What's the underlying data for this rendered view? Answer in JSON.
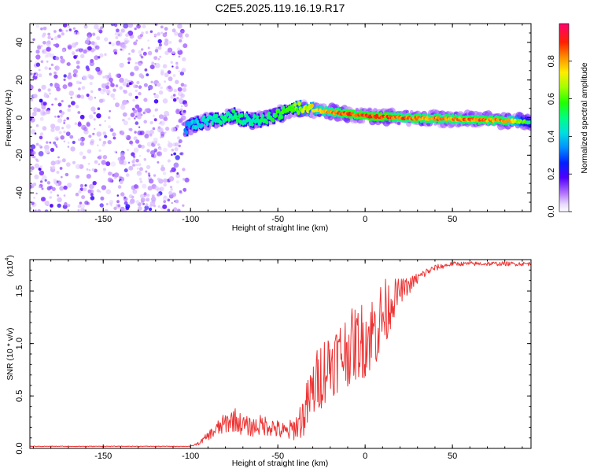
{
  "title": "C2E5.2025.119.16.19.R17",
  "chart_data": [
    {
      "type": "heatmap",
      "xlabel": "Height of straight line (km)",
      "ylabel": "Frequency (Hz)",
      "xlim": [
        -192,
        95
      ],
      "ylim": [
        -50,
        50
      ],
      "xticks": [
        -150,
        -100,
        -50,
        0,
        50
      ],
      "yticks": [
        -40,
        -20,
        0,
        20,
        40
      ],
      "colorbar": {
        "label": "Normalized spectral amplitude",
        "range": [
          0.0,
          1.0
        ],
        "ticks": [
          "0.0",
          "0.2",
          "0.4",
          "0.6",
          "0.8"
        ]
      },
      "noise_region_km": [
        -192,
        -102
      ],
      "signal_track": {
        "x": [
          -103,
          -95,
          -85,
          -75,
          -65,
          -55,
          -45,
          -38,
          -30,
          -20,
          -10,
          0,
          10,
          20,
          40,
          60,
          80,
          95
        ],
        "freq": [
          -6,
          -3,
          -1,
          1,
          -2,
          0,
          3,
          5,
          4,
          3,
          2,
          1,
          0.5,
          0,
          -0.5,
          -1,
          -1.5,
          -2.5
        ],
        "amplitude": [
          0.38,
          0.45,
          0.5,
          0.55,
          0.5,
          0.58,
          0.62,
          0.7,
          0.78,
          0.88,
          0.93,
          0.95,
          0.94,
          0.9,
          0.88,
          0.9,
          0.9,
          0.55
        ]
      }
    },
    {
      "type": "line",
      "series_name": "SNR",
      "xlabel": "Height of straight line (km)",
      "ylabel": "SNR (10 * v/v)",
      "y_multiplier": "(x10",
      "y_multiplier_exp": "4",
      "xlim": [
        -192,
        95
      ],
      "ylim": [
        0,
        1.8
      ],
      "xticks": [
        -150,
        -100,
        -50,
        0,
        50
      ],
      "yticks": [
        "0.0",
        "0.5",
        "1.0",
        "1.5"
      ],
      "color": "#ee3333",
      "x": [
        -192,
        -100,
        -95,
        -90,
        -85,
        -80,
        -75,
        -70,
        -65,
        -60,
        -55,
        -50,
        -45,
        -40,
        -35,
        -30,
        -25,
        -20,
        -15,
        -10,
        -5,
        0,
        5,
        10,
        13,
        15,
        20,
        25,
        30,
        35,
        40,
        45,
        50,
        55,
        60,
        70,
        80,
        90,
        95
      ],
      "y": [
        0.02,
        0.02,
        0.05,
        0.12,
        0.18,
        0.24,
        0.28,
        0.22,
        0.2,
        0.22,
        0.22,
        0.18,
        0.15,
        0.2,
        0.32,
        0.55,
        0.72,
        0.82,
        0.88,
        0.95,
        1.0,
        1.05,
        1.12,
        1.25,
        1.32,
        1.4,
        1.5,
        1.55,
        1.62,
        1.68,
        1.72,
        1.74,
        1.76,
        1.76,
        1.76,
        1.76,
        1.76,
        1.76,
        1.76
      ],
      "y_noise": [
        0.003,
        0.003,
        0.015,
        0.04,
        0.08,
        0.1,
        0.12,
        0.1,
        0.09,
        0.1,
        0.1,
        0.09,
        0.09,
        0.12,
        0.22,
        0.3,
        0.34,
        0.34,
        0.34,
        0.36,
        0.36,
        0.38,
        0.38,
        0.38,
        0.3,
        0.22,
        0.12,
        0.08,
        0.06,
        0.04,
        0.03,
        0.025,
        0.02,
        0.02,
        0.02,
        0.02,
        0.02,
        0.02,
        0.02
      ]
    }
  ]
}
